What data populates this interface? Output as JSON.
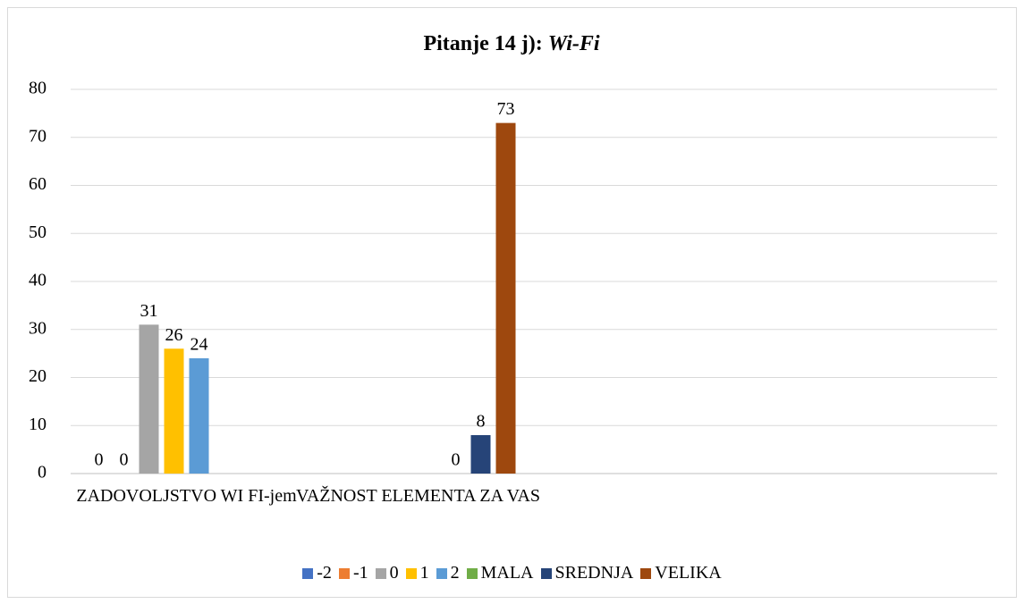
{
  "chart_data": {
    "type": "bar",
    "title": "Pitanje 14 j):",
    "title_italic": "Wi-Fi",
    "categories": [
      "ZADOVOLJSTVO WI FI-jem",
      "VAŽNOST ELEMENTA ZA VAS",
      null,
      null
    ],
    "series": [
      {
        "name": "-2",
        "color": "#4472c4",
        "values": [
          0,
          null,
          null,
          null
        ]
      },
      {
        "name": "-1",
        "color": "#ed7d31",
        "values": [
          0,
          null,
          null,
          null
        ]
      },
      {
        "name": "0",
        "color": "#a5a5a5",
        "values": [
          31,
          null,
          null,
          null
        ]
      },
      {
        "name": "1",
        "color": "#ffc000",
        "values": [
          26,
          null,
          null,
          null
        ]
      },
      {
        "name": "2",
        "color": "#5b9bd5",
        "values": [
          24,
          null,
          null,
          null
        ]
      },
      {
        "name": "MALA",
        "color": "#70ad47",
        "values": [
          null,
          0,
          null,
          null
        ]
      },
      {
        "name": "SREDNJA",
        "color": "#264478",
        "values": [
          null,
          8,
          null,
          null
        ]
      },
      {
        "name": "VELIKA",
        "color": "#9e480e",
        "values": [
          null,
          73,
          null,
          null
        ]
      }
    ],
    "ylim": [
      0,
      80
    ],
    "yticks": [
      0,
      10,
      20,
      30,
      40,
      50,
      60,
      70,
      80
    ],
    "grid": true,
    "legend": "bottom"
  }
}
